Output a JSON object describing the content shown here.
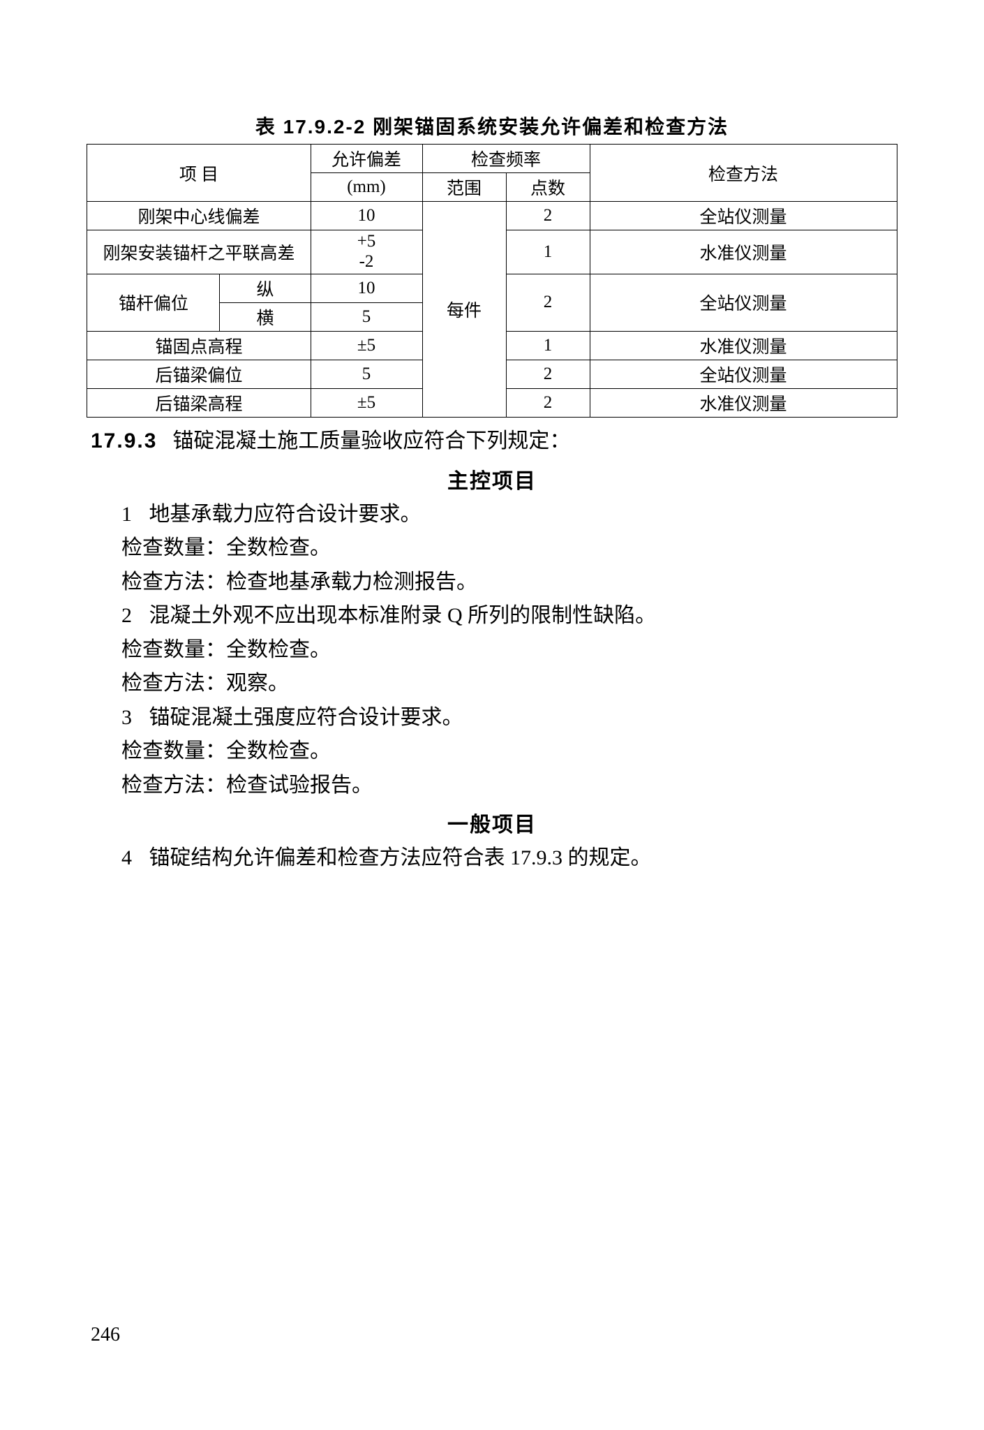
{
  "table": {
    "title": "表 17.9.2-2   刚架锚固系统安装允许偏差和检查方法",
    "header": {
      "item": "项   目",
      "deviation_top": "允许偏差",
      "deviation_unit": "(mm)",
      "freq": "检查频率",
      "scope": "范围",
      "points": "点数",
      "method": "检查方法"
    },
    "scope_value": "每件",
    "rows": {
      "r1_item": "刚架中心线偏差",
      "r1_dev": "10",
      "r1_pts": "2",
      "r1_method": "全站仪测量",
      "r2_item": "刚架安装锚杆之平联高差",
      "r2_dev_a": "+5",
      "r2_dev_b": "-2",
      "r2_pts": "1",
      "r2_method": "水准仪测量",
      "r3_item": "锚杆偏位",
      "r3a_sub": "纵",
      "r3a_dev": "10",
      "r3b_sub": "横",
      "r3b_dev": "5",
      "r3_pts": "2",
      "r3_method": "全站仪测量",
      "r4_item": "锚固点高程",
      "r4_dev": "±5",
      "r4_pts": "1",
      "r4_method": "水准仪测量",
      "r5_item": "后锚梁偏位",
      "r5_dev": "5",
      "r5_pts": "2",
      "r5_method": "全站仪测量",
      "r6_item": "后锚梁高程",
      "r6_dev": "±5",
      "r6_pts": "2",
      "r6_method": "水准仪测量"
    }
  },
  "body": {
    "clause_num": "17.9.3",
    "clause_text": "锚碇混凝土施工质量验收应符合下列规定：",
    "sub1": "主控项目",
    "p1_num": "1",
    "p1": "地基承载力应符合设计要求。",
    "p1a": "检查数量：全数检查。",
    "p1b": "检查方法：检查地基承载力检测报告。",
    "p2_num": "2",
    "p2": "混凝土外观不应出现本标准附录 Q 所列的限制性缺陷。",
    "p2a": "检查数量：全数检查。",
    "p2b": "检查方法：观察。",
    "p3_num": "3",
    "p3": "锚碇混凝土强度应符合设计要求。",
    "p3a": "检查数量：全数检查。",
    "p3b": "检查方法：检查试验报告。",
    "sub2": "一般项目",
    "p4_num": "4",
    "p4": "锚碇结构允许偏差和检查方法应符合表 17.9.3 的规定。"
  },
  "page_number": "246"
}
